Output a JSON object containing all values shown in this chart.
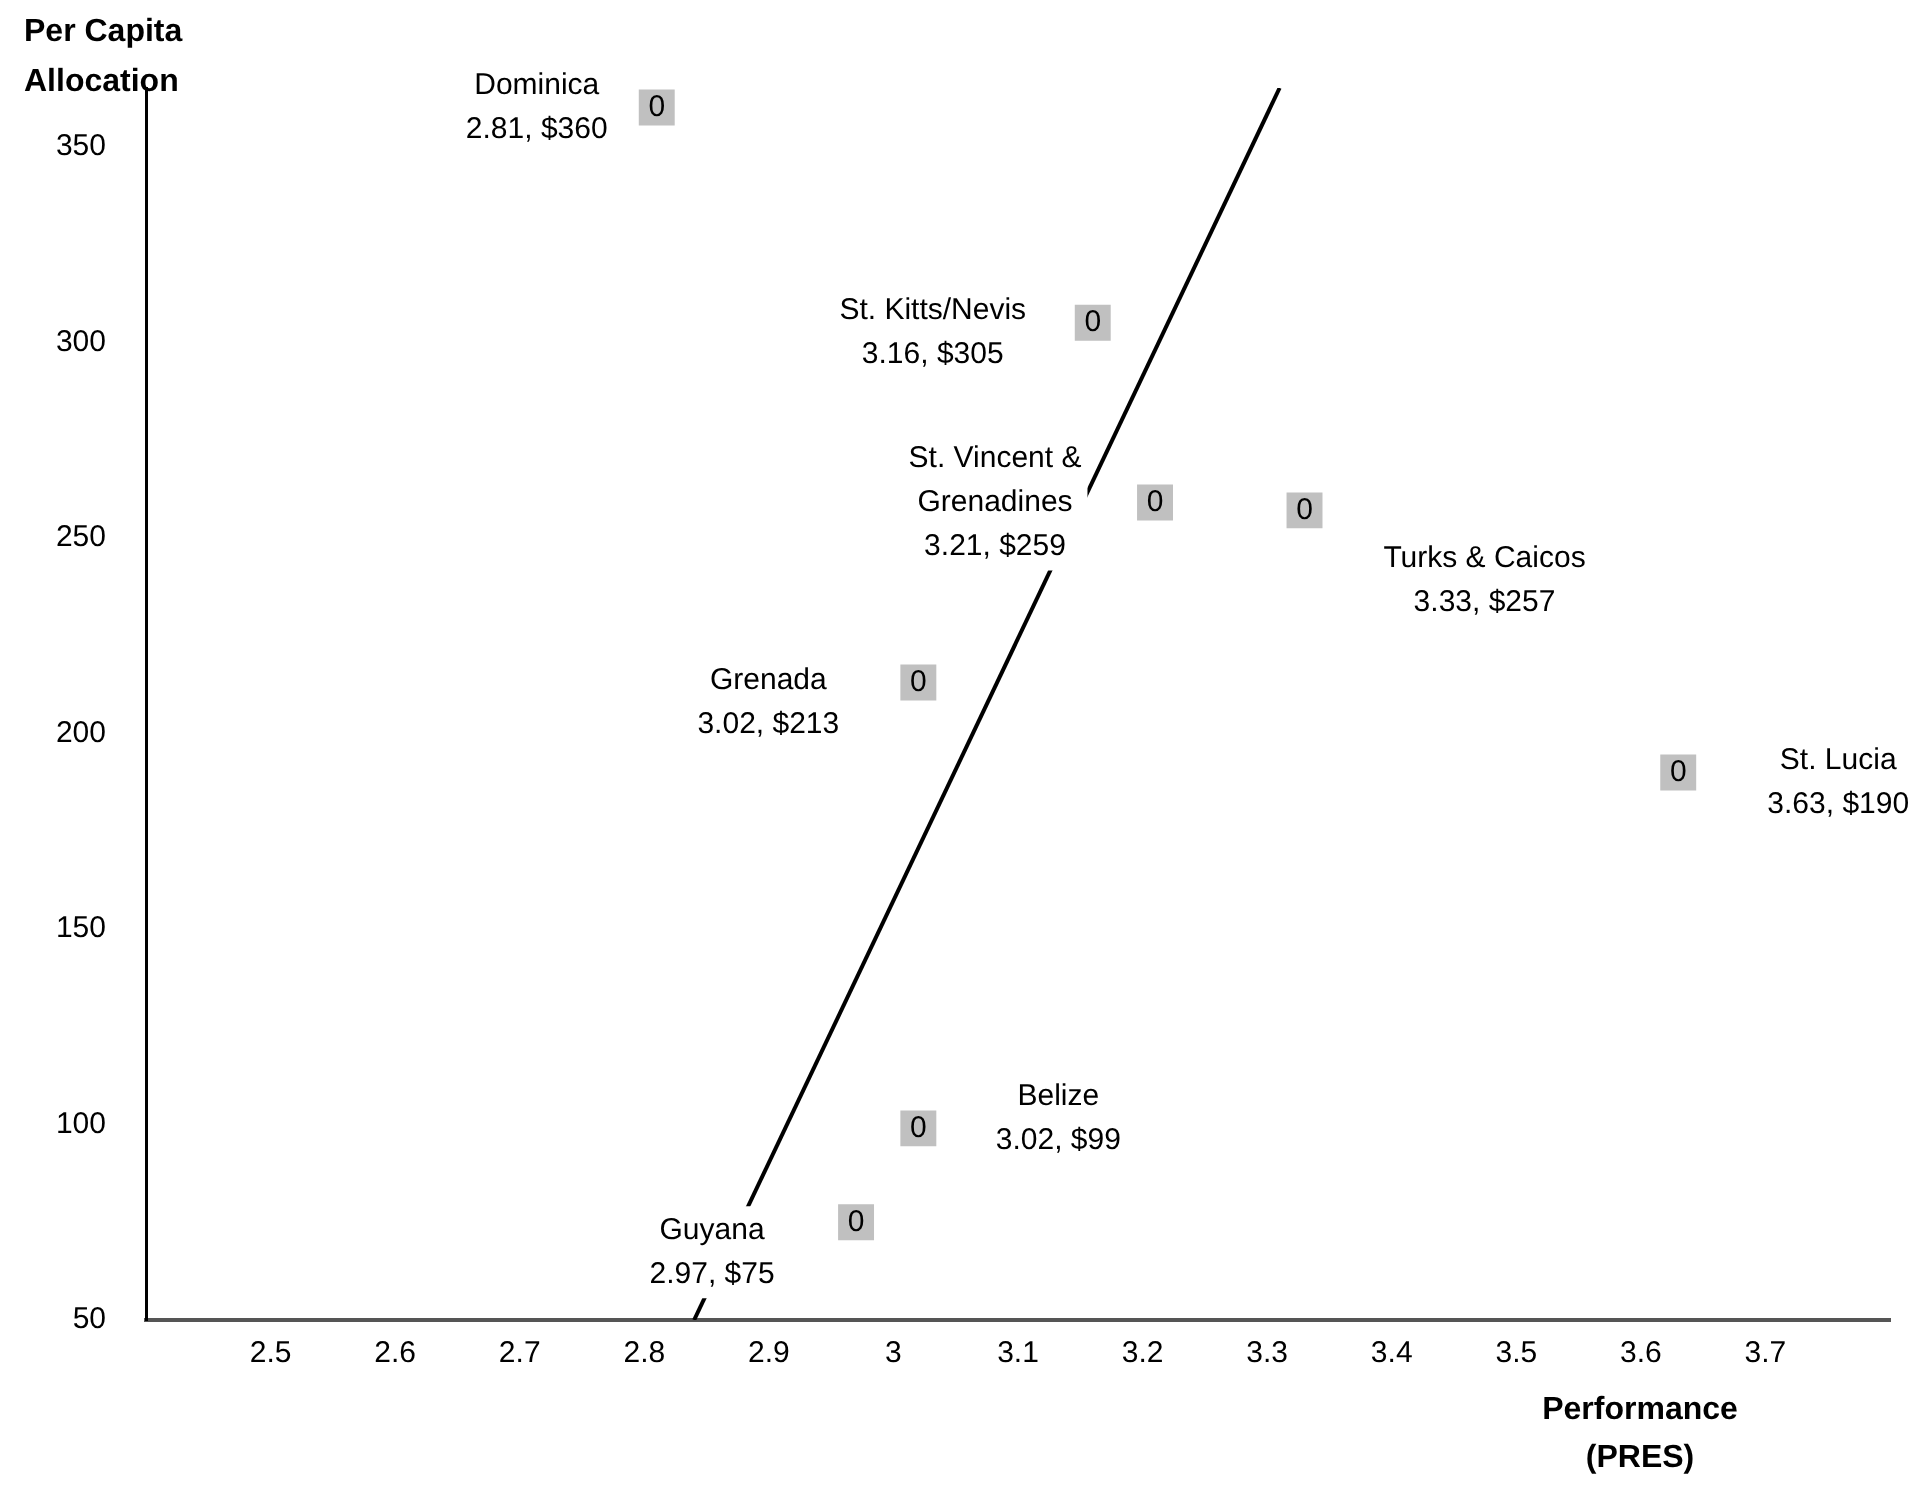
{
  "chart_data": {
    "type": "scatter",
    "xlabel": "Performance\n(PRES)",
    "ylabel": "Per Capita\nAllocation",
    "xlim": [
      2.4,
      3.8
    ],
    "xticks": [
      2.5,
      2.6,
      2.7,
      2.8,
      2.9,
      3.0,
      3.1,
      3.2,
      3.3,
      3.4,
      3.5,
      3.6,
      3.7
    ],
    "ylim": [
      50,
      365
    ],
    "yticks": [
      50,
      100,
      150,
      200,
      250,
      300,
      350
    ],
    "grid": false,
    "legend": false,
    "marker": "square",
    "series": [
      {
        "type": "scatter",
        "color": "#c0c0c0",
        "x": [
          2.81,
          3.16,
          3.21,
          3.33,
          3.02,
          3.63,
          3.02,
          2.97
        ],
        "values": [
          360,
          305,
          259,
          257,
          213,
          190,
          99,
          75
        ]
      },
      {
        "type": "line",
        "color": "#000000",
        "marker": "none",
        "line_style": "solid",
        "x": [
          2.84,
          3.31
        ],
        "values": [
          50,
          365
        ]
      }
    ],
    "annotations": [
      {
        "text": "Dominica\n2.81, $360",
        "x": 2.81,
        "y": 360
      },
      {
        "text": "St. Kitts/Nevis\n3.16, $305",
        "x": 3.16,
        "y": 305
      },
      {
        "text": "St. Vincent &\nGrenadines\n3.21, $259",
        "x": 3.21,
        "y": 259
      },
      {
        "text": "Turks & Caicos\n3.33, $257",
        "x": 3.33,
        "y": 257
      },
      {
        "text": "Grenada\n3.02, $213",
        "x": 3.02,
        "y": 213
      },
      {
        "text": "St. Lucia\n3.63, $190",
        "x": 3.63,
        "y": 190
      },
      {
        "text": "Belize\n3.02, $99",
        "x": 3.02,
        "y": 99
      },
      {
        "text": "Guyana\n2.97, $75",
        "x": 2.97,
        "y": 75
      },
      {
        "text": "0",
        "x": 2.81,
        "y": 360
      },
      {
        "text": "0",
        "x": 3.16,
        "y": 305
      },
      {
        "text": "0",
        "x": 3.21,
        "y": 259
      },
      {
        "text": "0",
        "x": 3.33,
        "y": 257
      },
      {
        "text": "0",
        "x": 3.02,
        "y": 213
      },
      {
        "text": "0",
        "x": 3.63,
        "y": 190
      },
      {
        "text": "0",
        "x": 3.02,
        "y": 99
      },
      {
        "text": "0",
        "x": 2.97,
        "y": 75
      }
    ]
  }
}
